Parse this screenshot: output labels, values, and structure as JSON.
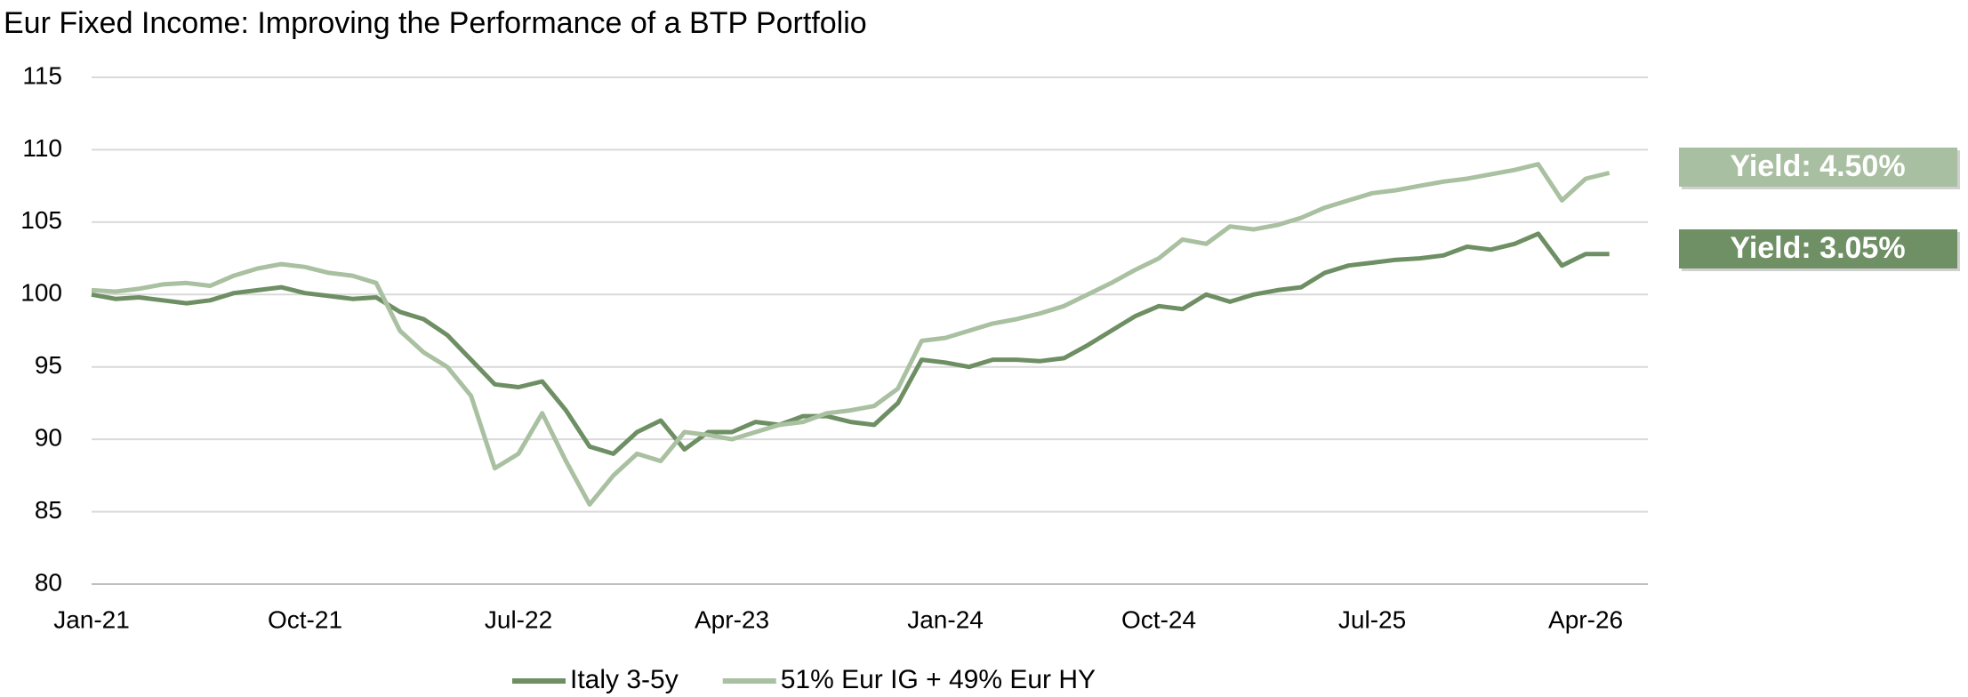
{
  "chart_data": {
    "type": "line",
    "title": "Eur Fixed Income: Improving the Performance of a BTP Portfolio",
    "categories": [
      "Jan-21",
      null,
      null,
      null,
      null,
      null,
      null,
      null,
      null,
      "Oct-21",
      null,
      null,
      null,
      null,
      null,
      null,
      null,
      null,
      "Jul-22",
      null,
      null,
      null,
      null,
      null,
      null,
      null,
      null,
      "Apr-23",
      null,
      null,
      null,
      null,
      null,
      null,
      null,
      null,
      "Jan-24",
      null,
      null,
      null,
      null,
      null,
      null,
      null,
      null,
      "Oct-24",
      null,
      null,
      null,
      null,
      null,
      null,
      null,
      null,
      "Jul-25",
      null,
      null,
      null,
      null,
      null,
      null,
      null,
      null,
      "Apr-26",
      null
    ],
    "series": [
      {
        "name": "Italy 3-5y",
        "color": "#6e8f63",
        "values": [
          100,
          99.7,
          99.8,
          99.6,
          99.4,
          99.6,
          100.1,
          100.3,
          100.5,
          100.1,
          99.9,
          99.7,
          99.8,
          98.8,
          98.3,
          97.2,
          95.5,
          93.8,
          93.6,
          94.0,
          92.0,
          89.5,
          89.0,
          90.5,
          91.3,
          89.3,
          90.5,
          90.5,
          91.2,
          91.0,
          91.6,
          91.6,
          91.2,
          91.0,
          92.5,
          95.5,
          95.3,
          95.0,
          95.5,
          95.5,
          95.4,
          95.6,
          96.5,
          97.5,
          98.5,
          99.2,
          99.0,
          100.0,
          99.5,
          100.0,
          100.3,
          100.5,
          101.5,
          102.0,
          102.2,
          102.4,
          102.5,
          102.7,
          103.3,
          103.1,
          103.5,
          104.2,
          102.0,
          102.8,
          102.8
        ]
      },
      {
        "name": "51% Eur IG + 49% Eur HY",
        "color": "#a9c0a1",
        "values": [
          100.3,
          100.2,
          100.4,
          100.7,
          100.8,
          100.6,
          101.3,
          101.8,
          102.1,
          101.9,
          101.5,
          101.3,
          100.8,
          97.5,
          96.0,
          95.0,
          93.0,
          88.0,
          89.0,
          91.8,
          88.5,
          85.5,
          87.5,
          89.0,
          88.5,
          90.5,
          90.3,
          90.0,
          90.5,
          91.0,
          91.2,
          91.8,
          92.0,
          92.3,
          93.5,
          96.8,
          97.0,
          97.5,
          98.0,
          98.3,
          98.7,
          99.2,
          100.0,
          100.8,
          101.7,
          102.5,
          103.8,
          103.5,
          104.7,
          104.5,
          104.8,
          105.3,
          106.0,
          106.5,
          107.0,
          107.2,
          107.5,
          107.8,
          108.0,
          108.3,
          108.6,
          109.0,
          106.5,
          108.0,
          108.4
        ]
      }
    ],
    "ylim": [
      80,
      115
    ],
    "yticks": [
      80,
      85,
      90,
      95,
      100,
      105,
      110,
      115
    ],
    "grid": true,
    "annotations": [
      {
        "text": "Yield: 4.50%",
        "color": "#a9bfa1"
      },
      {
        "text": "Yield: 3.05%",
        "color": "#6f8f64"
      }
    ],
    "legend": "bottom"
  }
}
